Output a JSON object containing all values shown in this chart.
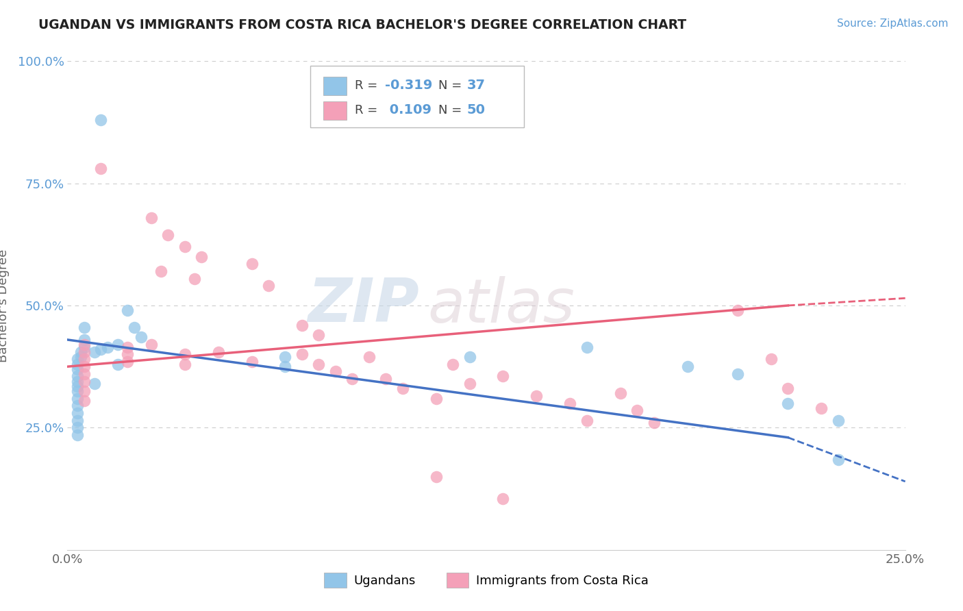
{
  "title": "UGANDAN VS IMMIGRANTS FROM COSTA RICA BACHELOR'S DEGREE CORRELATION CHART",
  "source_text": "Source: ZipAtlas.com",
  "ylabel": "Bachelor's Degree",
  "xlim": [
    0.0,
    0.25
  ],
  "ylim": [
    0.0,
    1.0
  ],
  "xtick_labels": [
    "0.0%",
    "25.0%"
  ],
  "xtick_vals": [
    0.0,
    0.25
  ],
  "ytick_labels": [
    "25.0%",
    "50.0%",
    "75.0%",
    "100.0%"
  ],
  "ytick_vals": [
    0.25,
    0.5,
    0.75,
    1.0
  ],
  "watermark_zip": "ZIP",
  "watermark_atlas": "atlas",
  "legend_ugandan_label": "Ugandans",
  "legend_costa_rica_label": "Immigrants from Costa Rica",
  "ugandan_R": "-0.319",
  "ugandan_N": "37",
  "costa_rica_R": "0.109",
  "costa_rica_N": "50",
  "ugandan_color": "#92C5E8",
  "costa_rica_color": "#F4A0B8",
  "ugandan_line_color": "#4472C4",
  "costa_rica_line_color": "#E8607A",
  "ugandan_scatter": [
    [
      0.01,
      0.88
    ],
    [
      0.018,
      0.49
    ],
    [
      0.02,
      0.455
    ],
    [
      0.022,
      0.435
    ],
    [
      0.015,
      0.42
    ],
    [
      0.012,
      0.415
    ],
    [
      0.01,
      0.41
    ],
    [
      0.008,
      0.405
    ],
    [
      0.005,
      0.455
    ],
    [
      0.005,
      0.43
    ],
    [
      0.005,
      0.415
    ],
    [
      0.004,
      0.405
    ],
    [
      0.004,
      0.395
    ],
    [
      0.003,
      0.39
    ],
    [
      0.003,
      0.38
    ],
    [
      0.003,
      0.37
    ],
    [
      0.003,
      0.355
    ],
    [
      0.003,
      0.345
    ],
    [
      0.003,
      0.335
    ],
    [
      0.003,
      0.325
    ],
    [
      0.003,
      0.31
    ],
    [
      0.003,
      0.295
    ],
    [
      0.003,
      0.28
    ],
    [
      0.003,
      0.265
    ],
    [
      0.003,
      0.25
    ],
    [
      0.003,
      0.235
    ],
    [
      0.008,
      0.34
    ],
    [
      0.015,
      0.38
    ],
    [
      0.065,
      0.395
    ],
    [
      0.065,
      0.375
    ],
    [
      0.12,
      0.395
    ],
    [
      0.155,
      0.415
    ],
    [
      0.185,
      0.375
    ],
    [
      0.2,
      0.36
    ],
    [
      0.215,
      0.3
    ],
    [
      0.23,
      0.265
    ],
    [
      0.23,
      0.185
    ]
  ],
  "costa_rica_scatter": [
    [
      0.01,
      0.78
    ],
    [
      0.025,
      0.68
    ],
    [
      0.03,
      0.645
    ],
    [
      0.035,
      0.62
    ],
    [
      0.04,
      0.6
    ],
    [
      0.028,
      0.57
    ],
    [
      0.055,
      0.585
    ],
    [
      0.038,
      0.555
    ],
    [
      0.06,
      0.54
    ],
    [
      0.07,
      0.46
    ],
    [
      0.075,
      0.44
    ],
    [
      0.005,
      0.42
    ],
    [
      0.005,
      0.405
    ],
    [
      0.005,
      0.39
    ],
    [
      0.005,
      0.375
    ],
    [
      0.005,
      0.36
    ],
    [
      0.005,
      0.345
    ],
    [
      0.005,
      0.325
    ],
    [
      0.005,
      0.305
    ],
    [
      0.018,
      0.415
    ],
    [
      0.018,
      0.4
    ],
    [
      0.018,
      0.385
    ],
    [
      0.025,
      0.42
    ],
    [
      0.035,
      0.4
    ],
    [
      0.035,
      0.38
    ],
    [
      0.045,
      0.405
    ],
    [
      0.055,
      0.385
    ],
    [
      0.07,
      0.4
    ],
    [
      0.075,
      0.38
    ],
    [
      0.08,
      0.365
    ],
    [
      0.085,
      0.35
    ],
    [
      0.09,
      0.395
    ],
    [
      0.095,
      0.35
    ],
    [
      0.1,
      0.33
    ],
    [
      0.11,
      0.31
    ],
    [
      0.115,
      0.38
    ],
    [
      0.12,
      0.34
    ],
    [
      0.13,
      0.355
    ],
    [
      0.14,
      0.315
    ],
    [
      0.15,
      0.3
    ],
    [
      0.155,
      0.265
    ],
    [
      0.165,
      0.32
    ],
    [
      0.17,
      0.285
    ],
    [
      0.175,
      0.26
    ],
    [
      0.2,
      0.49
    ],
    [
      0.21,
      0.39
    ],
    [
      0.215,
      0.33
    ],
    [
      0.225,
      0.29
    ],
    [
      0.11,
      0.15
    ],
    [
      0.13,
      0.105
    ]
  ],
  "ugandan_trendline_solid": [
    [
      0.0,
      0.43
    ],
    [
      0.215,
      0.23
    ]
  ],
  "costa_rica_trendline_solid": [
    [
      0.0,
      0.375
    ],
    [
      0.215,
      0.5
    ]
  ],
  "ugandan_trendline_dashed": [
    [
      0.215,
      0.23
    ],
    [
      0.25,
      0.14
    ]
  ],
  "costa_rica_trendline_dashed": [
    [
      0.215,
      0.5
    ],
    [
      0.25,
      0.515
    ]
  ]
}
